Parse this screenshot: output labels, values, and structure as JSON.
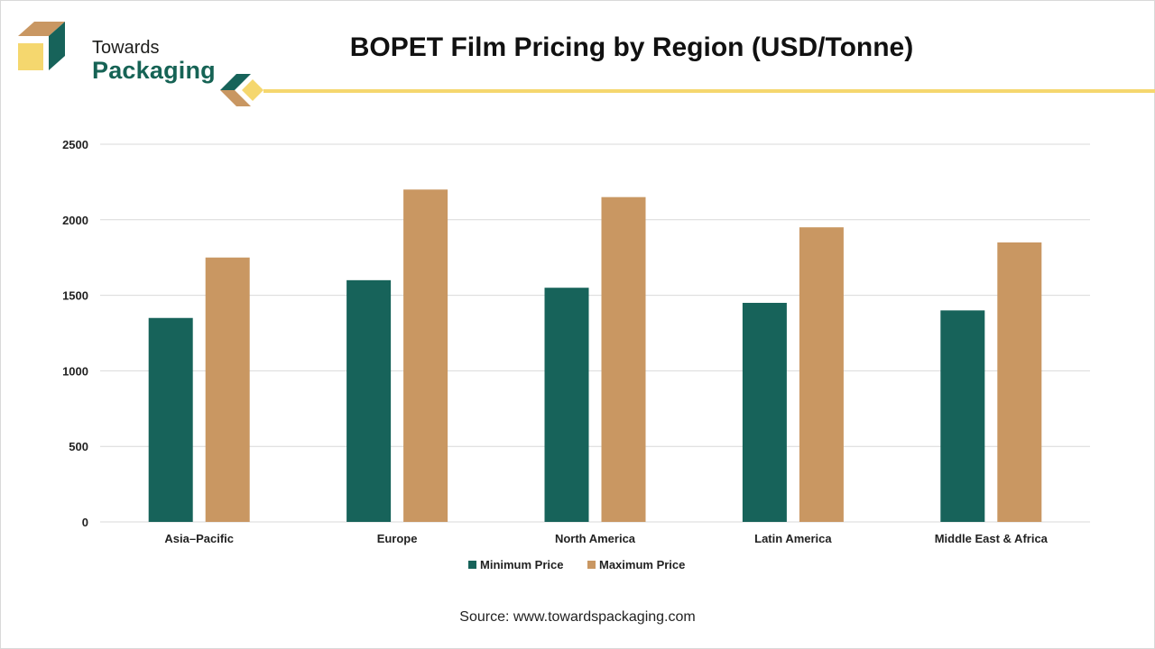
{
  "brand": {
    "name_top": "Towards",
    "name_bottom": "Packaging"
  },
  "colors": {
    "min": "#17635a",
    "max": "#c99762",
    "accent_yellow": "#f5d76e",
    "grid": "#d9d9d9"
  },
  "chart_data": {
    "type": "bar",
    "title": "BOPET Film Pricing by Region (USD/Tonne)",
    "categories": [
      "Asia–Pacific",
      "Europe",
      "North America",
      "Latin America",
      "Middle East & Africa"
    ],
    "series": [
      {
        "name": "Minimum Price",
        "values": [
          1350,
          1600,
          1550,
          1450,
          1400
        ]
      },
      {
        "name": "Maximum Price",
        "values": [
          1750,
          2200,
          2150,
          1950,
          1850
        ]
      }
    ],
    "ylim": [
      0,
      2500
    ],
    "yticks": [
      0,
      500,
      1000,
      1500,
      2000,
      2500
    ],
    "grid": true,
    "legend": "bottom"
  },
  "source": "Source: www.towardspackaging.com"
}
